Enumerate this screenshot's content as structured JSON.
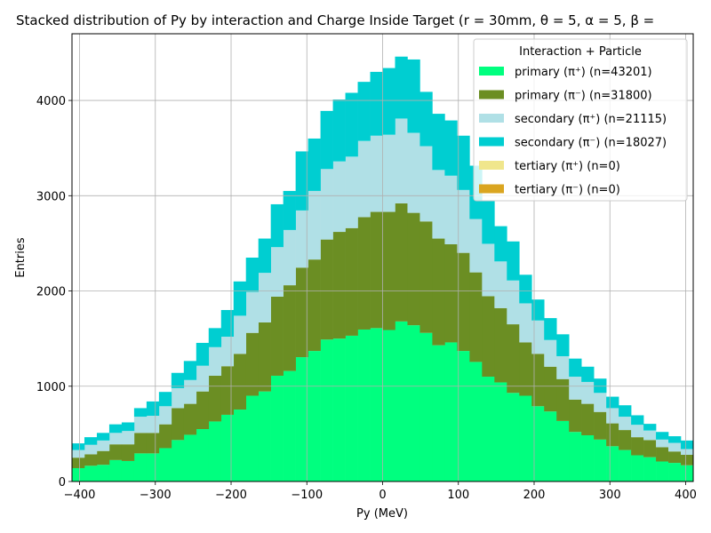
{
  "chart_data": {
    "type": "bar",
    "title": "Stacked distribution of Py by interaction and Charge Inside Target (r = 30mm, θ = 5, α = 5, β = ",
    "xlabel": "Py (MeV)",
    "ylabel": "Entries",
    "xlim": [
      -410,
      410
    ],
    "ylim": [
      0,
      4700
    ],
    "x_ticks": [
      -400,
      -300,
      -200,
      -100,
      0,
      100,
      200,
      300,
      400
    ],
    "y_ticks": [
      0,
      1000,
      2000,
      3000,
      4000
    ],
    "x_tick_labels": [
      "−400",
      "−300",
      "−200",
      "−100",
      "0",
      "100",
      "200",
      "300",
      "400"
    ],
    "y_tick_labels": [
      "0",
      "1000",
      "2000",
      "3000",
      "4000"
    ],
    "grid": true,
    "legend_placement": "top-right",
    "legend_title": "Interaction + Particle",
    "stacked": true,
    "bin_width": 16.4,
    "x": [
      -401.8,
      -385.4,
      -369.0,
      -352.6,
      -336.2,
      -319.8,
      -303.4,
      -287.0,
      -270.6,
      -254.2,
      -237.8,
      -221.4,
      -205.0,
      -188.6,
      -172.2,
      -155.8,
      -139.4,
      -123.0,
      -106.6,
      -90.2,
      -73.8,
      -57.4,
      -41.0,
      -24.6,
      -8.2,
      8.2,
      24.6,
      41.0,
      57.4,
      73.8,
      90.2,
      106.6,
      123.0,
      139.4,
      155.8,
      172.2,
      188.6,
      205.0,
      221.4,
      237.8,
      254.2,
      270.6,
      287.0,
      303.4,
      319.8,
      336.2,
      352.6,
      369.0,
      385.4,
      401.8
    ],
    "series": [
      {
        "name": "primary (π⁺) (n=43201)",
        "color": "#00ff7f",
        "values": [
          140,
          165,
          175,
          225,
          215,
          295,
          295,
          350,
          435,
          490,
          550,
          630,
          700,
          755,
          900,
          945,
          1110,
          1160,
          1305,
          1370,
          1490,
          1500,
          1530,
          1595,
          1610,
          1590,
          1680,
          1640,
          1560,
          1430,
          1460,
          1370,
          1255,
          1100,
          1040,
          930,
          900,
          790,
          735,
          635,
          520,
          485,
          440,
          370,
          330,
          275,
          255,
          210,
          195,
          170
        ]
      },
      {
        "name": "primary (π⁻) (n=31800)",
        "color": "#6b8e23",
        "values": [
          110,
          120,
          145,
          165,
          175,
          215,
          215,
          250,
          335,
          325,
          395,
          480,
          510,
          585,
          660,
          725,
          830,
          900,
          940,
          960,
          1050,
          1120,
          1130,
          1180,
          1220,
          1240,
          1240,
          1180,
          1170,
          1120,
          1030,
          1030,
          940,
          845,
          780,
          720,
          560,
          550,
          470,
          440,
          340,
          330,
          290,
          240,
          210,
          190,
          180,
          150,
          120,
          110
        ]
      },
      {
        "name": "secondary (π⁺) (n=21115)",
        "color": "#b0e0e6",
        "values": [
          80,
          100,
          110,
          120,
          140,
          170,
          180,
          190,
          210,
          250,
          270,
          300,
          310,
          400,
          430,
          520,
          520,
          580,
          600,
          720,
          740,
          740,
          750,
          800,
          800,
          810,
          890,
          840,
          790,
          720,
          720,
          660,
          560,
          550,
          490,
          460,
          410,
          350,
          280,
          240,
          240,
          230,
          200,
          160,
          140,
          130,
          100,
          80,
          90,
          60
        ]
      },
      {
        "name": "secondary (π⁻) (n=18027)",
        "color": "#00ced1",
        "values": [
          70,
          80,
          80,
          90,
          90,
          90,
          150,
          150,
          160,
          200,
          240,
          200,
          280,
          360,
          360,
          360,
          450,
          410,
          620,
          550,
          610,
          650,
          670,
          620,
          670,
          700,
          650,
          770,
          570,
          590,
          580,
          570,
          560,
          450,
          370,
          410,
          300,
          220,
          230,
          230,
          190,
          160,
          150,
          120,
          120,
          100,
          70,
          80,
          70,
          90
        ]
      },
      {
        "name": "tertiary (π⁺) (n=0)",
        "color": "#f0e68c",
        "values": [
          0,
          0,
          0,
          0,
          0,
          0,
          0,
          0,
          0,
          0,
          0,
          0,
          0,
          0,
          0,
          0,
          0,
          0,
          0,
          0,
          0,
          0,
          0,
          0,
          0,
          0,
          0,
          0,
          0,
          0,
          0,
          0,
          0,
          0,
          0,
          0,
          0,
          0,
          0,
          0,
          0,
          0,
          0,
          0,
          0,
          0,
          0,
          0,
          0,
          0
        ]
      },
      {
        "name": "tertiary (π⁻) (n=0)",
        "color": "#daa520",
        "values": [
          0,
          0,
          0,
          0,
          0,
          0,
          0,
          0,
          0,
          0,
          0,
          0,
          0,
          0,
          0,
          0,
          0,
          0,
          0,
          0,
          0,
          0,
          0,
          0,
          0,
          0,
          0,
          0,
          0,
          0,
          0,
          0,
          0,
          0,
          0,
          0,
          0,
          0,
          0,
          0,
          0,
          0,
          0,
          0,
          0,
          0,
          0,
          0,
          0,
          0
        ]
      }
    ]
  }
}
